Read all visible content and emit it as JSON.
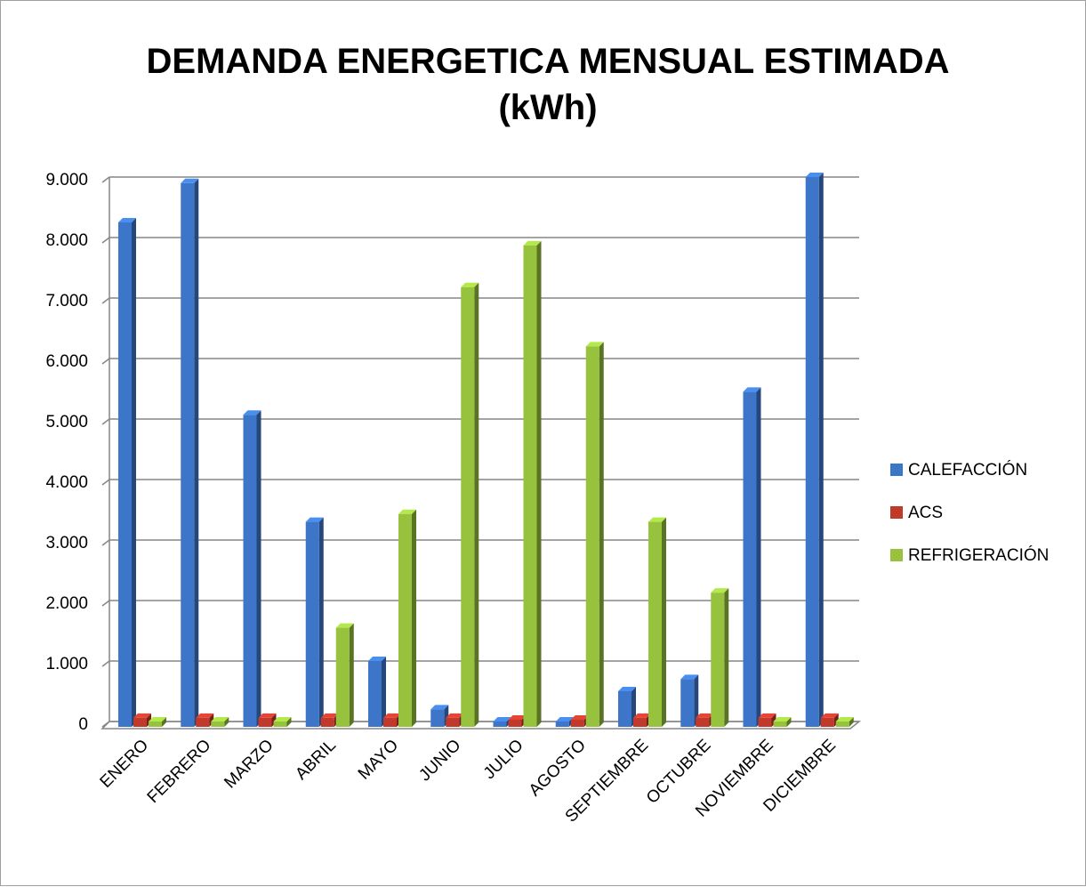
{
  "chart_data": {
    "type": "bar",
    "title": "DEMANDA ENERGETICA MENSUAL ESTIMADA (kWh)",
    "categories": [
      "ENERO",
      "FEBRERO",
      "MARZO",
      "ABRIL",
      "MAYO",
      "JUNIO",
      "JULIO",
      "AGOSTO",
      "SEPTIEMBRE",
      "OCTUBRE",
      "NOVIEMBRE",
      "DICIEMBRE"
    ],
    "series": [
      {
        "name": "CALEFACCIÓN",
        "color": "#3d76c9",
        "values": [
          8250,
          8900,
          5070,
          3300,
          1000,
          200,
          0,
          0,
          500,
          700,
          5450,
          9000
        ]
      },
      {
        "name": "ACS",
        "color": "#c0392b",
        "values": [
          60,
          60,
          60,
          60,
          60,
          60,
          30,
          30,
          60,
          60,
          60,
          60
        ]
      },
      {
        "name": "REFRIGERACIÓN",
        "color": "#96c23e",
        "values": [
          0,
          0,
          0,
          1550,
          3430,
          7180,
          7870,
          6200,
          3300,
          2130,
          0,
          0
        ]
      }
    ],
    "ylim": [
      0,
      9000
    ],
    "yticks": [
      0,
      {
        "value": 1000,
        "label": "1.000"
      },
      {
        "value": 2000,
        "label": "2.000"
      },
      {
        "value": 3000,
        "label": "3.000"
      },
      {
        "value": 4000,
        "label": "4.000"
      },
      {
        "value": 5000,
        "label": "5.000"
      },
      {
        "value": 6000,
        "label": "6.000"
      },
      {
        "value": 7000,
        "label": "7.000"
      },
      {
        "value": 8000,
        "label": "8.000"
      },
      {
        "value": 9000,
        "label": "9.000"
      }
    ],
    "grid": true,
    "legend": "right"
  }
}
